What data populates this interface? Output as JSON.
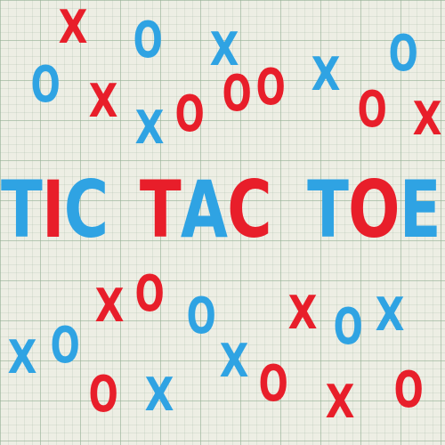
{
  "title": {
    "words": [
      {
        "letters": [
          {
            "char": "T",
            "color": "#2fa3e3"
          },
          {
            "char": "I",
            "color": "#e81e2a"
          },
          {
            "char": "C",
            "color": "#2fa3e3"
          }
        ]
      },
      {
        "letters": [
          {
            "char": "T",
            "color": "#e81e2a"
          },
          {
            "char": "A",
            "color": "#2fa3e3"
          },
          {
            "char": "C",
            "color": "#e81e2a"
          }
        ]
      },
      {
        "letters": [
          {
            "char": "T",
            "color": "#2fa3e3"
          },
          {
            "char": "O",
            "color": "#e81e2a"
          },
          {
            "char": "E",
            "color": "#2fa3e3"
          }
        ]
      }
    ]
  },
  "marks": [
    {
      "symbol": "X",
      "color": "red"
    },
    {
      "symbol": "O",
      "color": "blue"
    },
    {
      "symbol": "X",
      "color": "blue"
    },
    {
      "symbol": "O",
      "color": "blue"
    },
    {
      "symbol": "O",
      "color": "blue"
    },
    {
      "symbol": "X",
      "color": "red"
    },
    {
      "symbol": "O",
      "color": "red"
    },
    {
      "symbol": "X",
      "color": "blue"
    },
    {
      "symbol": "O",
      "color": "red"
    },
    {
      "symbol": "X",
      "color": "blue"
    },
    {
      "symbol": "O",
      "color": "red"
    },
    {
      "symbol": "X",
      "color": "red"
    },
    {
      "symbol": "X",
      "color": "red"
    },
    {
      "symbol": "O",
      "color": "red"
    },
    {
      "symbol": "O",
      "color": "blue"
    },
    {
      "symbol": "X",
      "color": "red"
    },
    {
      "symbol": "O",
      "color": "blue"
    },
    {
      "symbol": "X",
      "color": "blue"
    },
    {
      "symbol": "X",
      "color": "blue"
    },
    {
      "symbol": "O",
      "color": "blue"
    },
    {
      "symbol": "O",
      "color": "red"
    },
    {
      "symbol": "X",
      "color": "blue"
    },
    {
      "symbol": "X",
      "color": "blue"
    },
    {
      "symbol": "O",
      "color": "red"
    },
    {
      "symbol": "O",
      "color": "red"
    },
    {
      "symbol": "X",
      "color": "red"
    },
    {
      "symbol": "O",
      "color": "red"
    }
  ],
  "colors": {
    "blue": "#2fa3e3",
    "red": "#e81e2a",
    "paper": "#edeee4",
    "grid": "#96b296"
  }
}
